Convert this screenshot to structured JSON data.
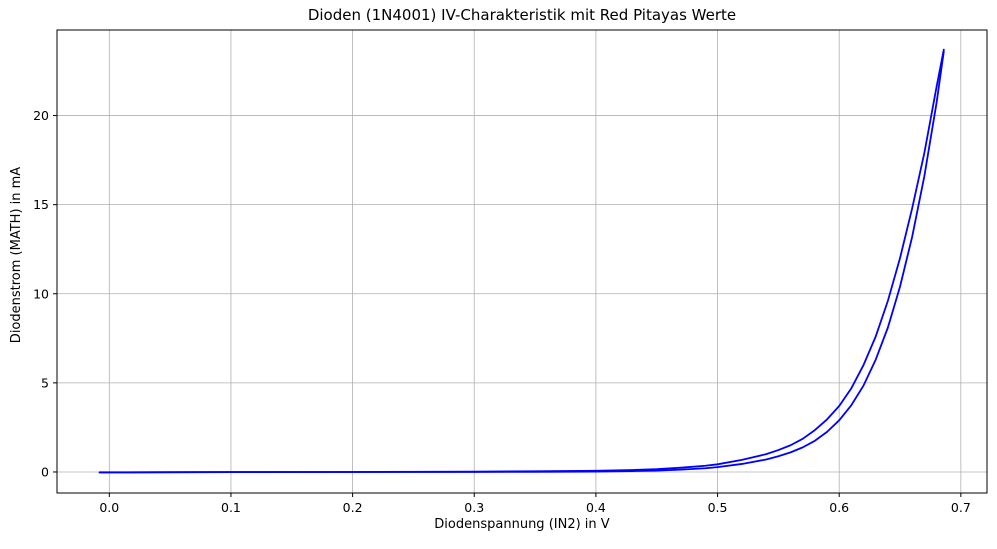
{
  "chart_data": {
    "type": "line",
    "title": "Dioden (1N4001) IV-Charakteristik mit Red Pitayas Werte",
    "xlabel": "Diodenspannung (IN2) in V",
    "ylabel": "Diodenstrom (MATH) in mA",
    "xlim": [
      -0.043,
      0.7215
    ],
    "ylim": [
      -1.18,
      24.8
    ],
    "x_ticks": [
      0.0,
      0.1,
      0.2,
      0.3,
      0.4,
      0.5,
      0.6,
      0.7
    ],
    "x_tick_labels": [
      "0.0",
      "0.1",
      "0.2",
      "0.3",
      "0.4",
      "0.5",
      "0.6",
      "0.7"
    ],
    "y_ticks": [
      0,
      5,
      10,
      15,
      20
    ],
    "y_tick_labels": [
      "0",
      "5",
      "10",
      "15",
      "20"
    ],
    "grid": true,
    "color": "#0000ff",
    "series": [
      {
        "x": [
          -0.008,
          0.05,
          0.1,
          0.2,
          0.3,
          0.35,
          0.4,
          0.43,
          0.45,
          0.47,
          0.49,
          0.5,
          0.52,
          0.54,
          0.55,
          0.56,
          0.57,
          0.58,
          0.59,
          0.6,
          0.61,
          0.62,
          0.63,
          0.64,
          0.65,
          0.66,
          0.67,
          0.68,
          0.686
        ],
        "y": [
          -0.02,
          -0.01,
          0.0,
          0.0,
          0.02,
          0.04,
          0.07,
          0.11,
          0.16,
          0.24,
          0.35,
          0.43,
          0.68,
          1.0,
          1.23,
          1.5,
          1.86,
          2.35,
          2.95,
          3.7,
          4.7,
          6.0,
          7.6,
          9.6,
          12.0,
          14.8,
          17.9,
          21.6,
          23.7
        ]
      },
      {
        "x": [
          -0.008,
          0.05,
          0.1,
          0.2,
          0.3,
          0.35,
          0.4,
          0.43,
          0.45,
          0.47,
          0.49,
          0.5,
          0.52,
          0.54,
          0.55,
          0.56,
          0.57,
          0.58,
          0.59,
          0.6,
          0.61,
          0.62,
          0.63,
          0.64,
          0.65,
          0.66,
          0.67,
          0.68,
          0.686
        ],
        "y": [
          -0.03,
          -0.02,
          -0.01,
          0.0,
          0.0,
          0.01,
          0.02,
          0.05,
          0.08,
          0.13,
          0.21,
          0.27,
          0.45,
          0.7,
          0.88,
          1.1,
          1.38,
          1.75,
          2.25,
          2.9,
          3.75,
          4.85,
          6.3,
          8.1,
          10.4,
          13.2,
          16.6,
          20.7,
          23.6
        ]
      }
    ]
  }
}
